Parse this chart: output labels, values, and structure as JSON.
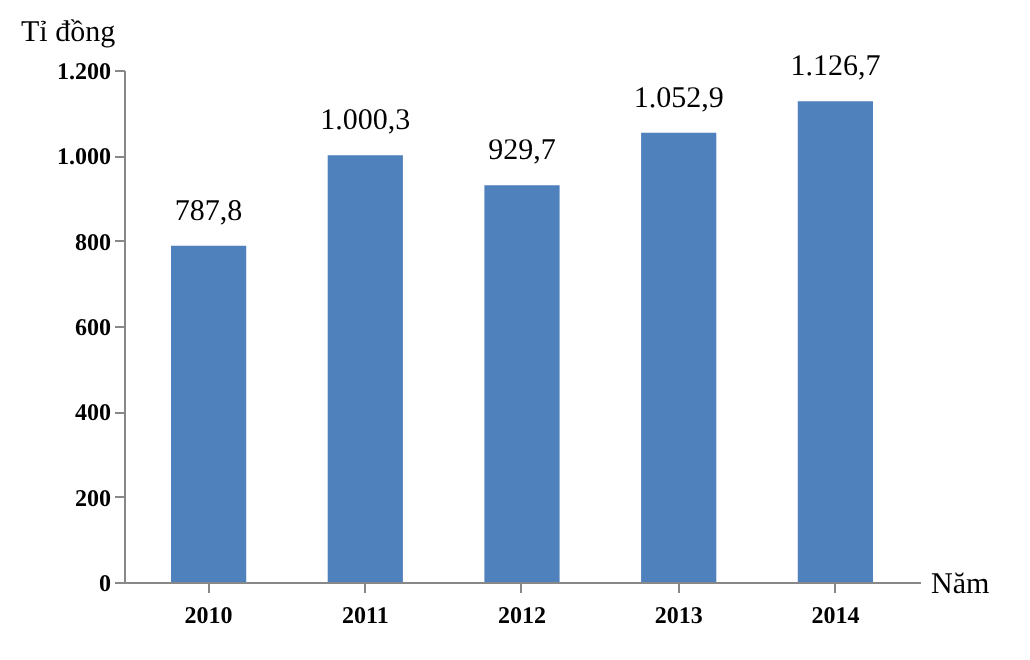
{
  "chart_data": {
    "type": "bar",
    "xlabel": "Năm",
    "ylabel": "Tỉ đồng",
    "categories": [
      "2010",
      "2011",
      "2012",
      "2013",
      "2014"
    ],
    "values": [
      787.8,
      1000.3,
      929.7,
      1052.9,
      1126.7
    ],
    "value_labels": [
      "787,8",
      "1.000,3",
      "929,7",
      "1.052,9",
      "1.126,7"
    ],
    "color": "#4f81bd",
    "ylim": [
      0,
      1200
    ],
    "yticks": [
      0,
      {
        "value": 200,
        "label": "200"
      },
      {
        "value": 400,
        "label": "400"
      },
      {
        "value": 600,
        "label": "600"
      },
      {
        "value": 800,
        "label": "800"
      },
      {
        "value": 1000,
        "label": "1.000"
      },
      {
        "value": 1200,
        "label": "1.200"
      }
    ],
    "grid": false
  }
}
